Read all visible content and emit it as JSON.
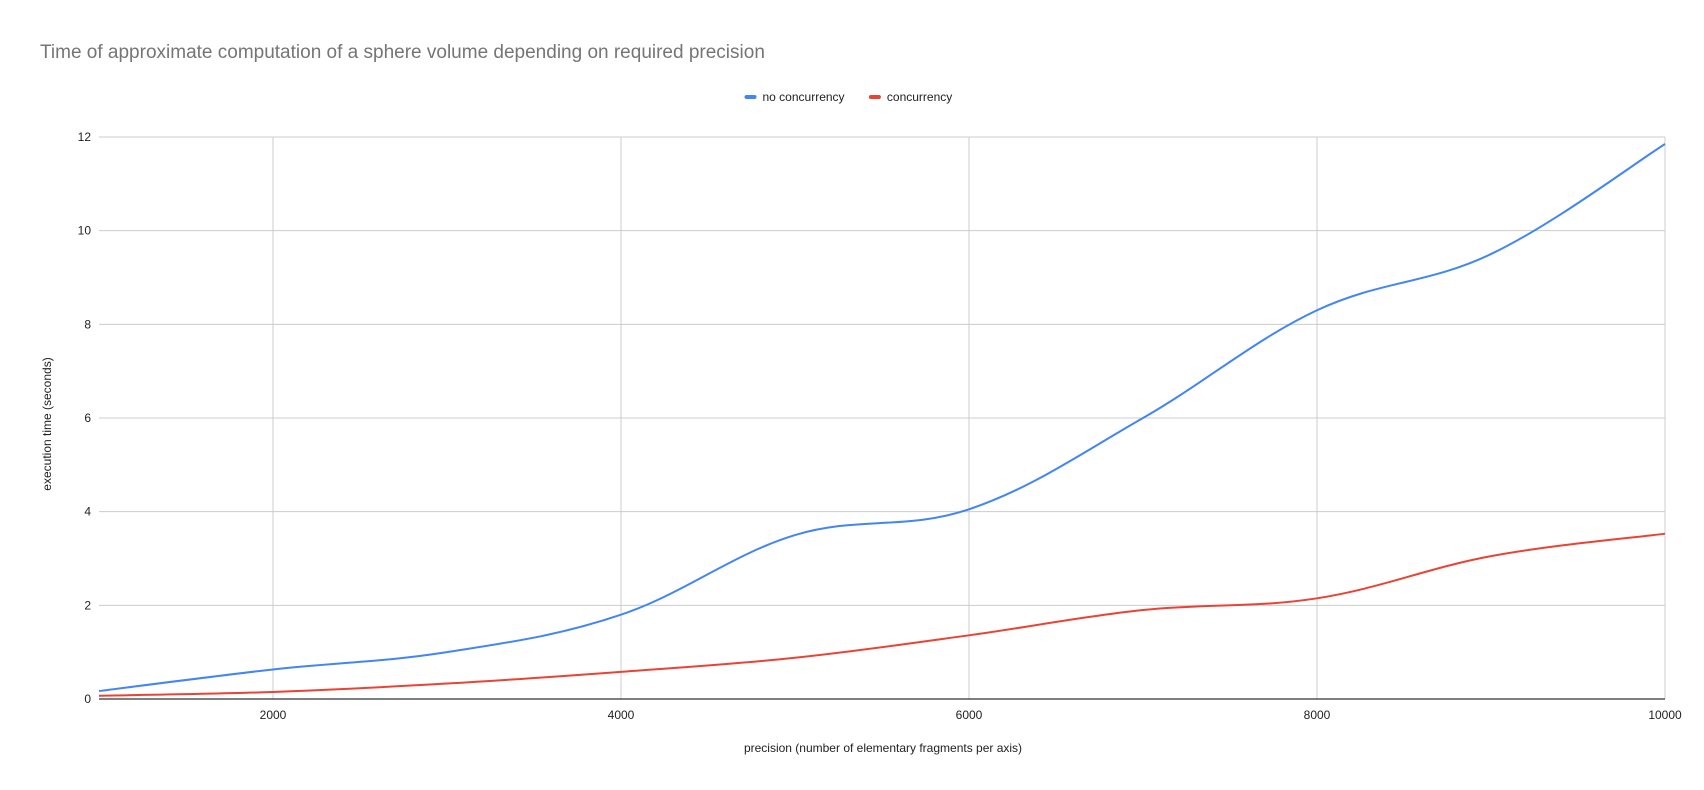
{
  "chart_data": {
    "type": "line",
    "title": "Time of approximate computation of a sphere volume depending on required precision",
    "xlabel": "precision (number of elementary fragments per axis)",
    "ylabel": "execution time (seconds)",
    "xlim": [
      1000,
      10000
    ],
    "ylim": [
      0,
      12
    ],
    "x_ticks": [
      2000,
      4000,
      6000,
      8000,
      10000
    ],
    "y_ticks": [
      0,
      2,
      4,
      6,
      8,
      10,
      12
    ],
    "grid": true,
    "legend_position": "top-center",
    "x": [
      1000,
      2000,
      3000,
      4000,
      5000,
      6000,
      7000,
      8000,
      9000,
      10000
    ],
    "series": [
      {
        "name": "no concurrency",
        "color": "#4285f4",
        "values": [
          0.17,
          0.63,
          1.0,
          1.8,
          3.5,
          4.05,
          6.0,
          8.3,
          9.5,
          11.85
        ]
      },
      {
        "name": "concurrency",
        "color": "#ea4335",
        "values": [
          0.07,
          0.15,
          0.33,
          0.58,
          0.88,
          1.36,
          1.9,
          2.15,
          3.05,
          3.53
        ]
      }
    ]
  }
}
